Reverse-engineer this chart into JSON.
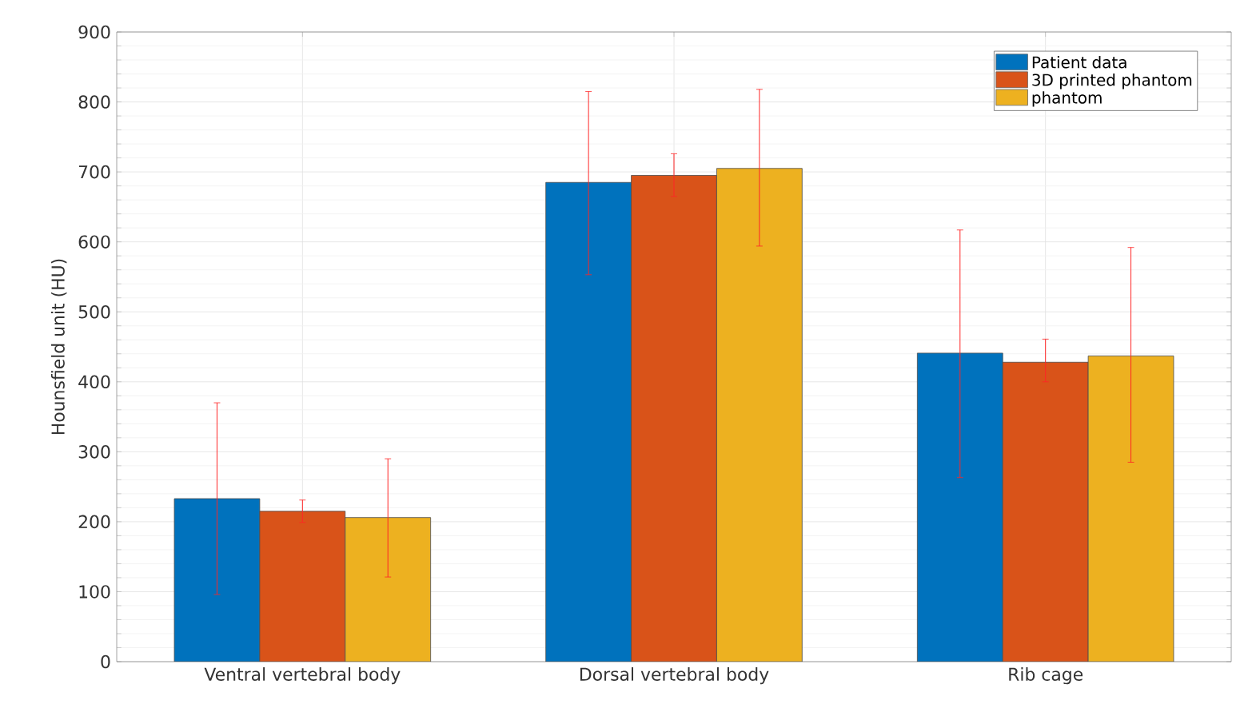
{
  "chart_data": {
    "type": "bar",
    "ylabel": "Hounsfield unit (HU)",
    "categories": [
      "Ventral vertebral body",
      "Dorsal vertebral body",
      "Rib cage"
    ],
    "series": [
      {
        "name": "Patient data",
        "color": "#0072bd",
        "values": [
          233,
          685,
          441
        ],
        "errors": [
          [
            96,
            370
          ],
          [
            553,
            815
          ],
          [
            263,
            617
          ]
        ]
      },
      {
        "name": "3D printed phantom",
        "color": "#d95319",
        "values": [
          215,
          695,
          428
        ],
        "errors": [
          [
            199,
            231
          ],
          [
            665,
            726
          ],
          [
            400,
            461
          ]
        ]
      },
      {
        "name": "phantom",
        "color": "#edb120",
        "values": [
          206,
          705,
          437
        ],
        "errors": [
          [
            121,
            290
          ],
          [
            594,
            818
          ],
          [
            285,
            592
          ]
        ]
      }
    ],
    "ylim": [
      0,
      900
    ],
    "yticks": [
      0,
      100,
      200,
      300,
      400,
      500,
      600,
      700,
      800,
      900
    ],
    "grid": true,
    "legend": "top right"
  }
}
